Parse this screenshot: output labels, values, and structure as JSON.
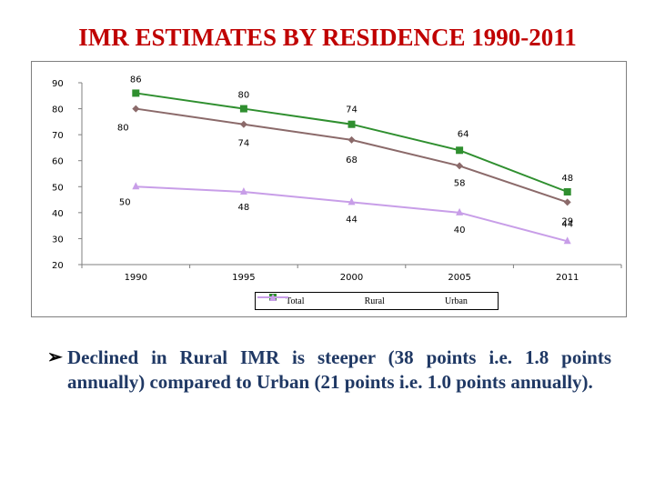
{
  "slide": {
    "title": "IMR ESTIMATES BY RESIDENCE 1990-2011",
    "bullet_text": "Declined in Rural IMR is steeper (38 points i.e. 1.8 points annually) compared to Urban (21 points i.e. 1.0 points annually).",
    "bullet_icon": "arrow-bullet-icon"
  },
  "chart_data": {
    "type": "line",
    "title": "",
    "xlabel": "",
    "ylabel": "",
    "categories": [
      "1990",
      "1995",
      "2000",
      "2005",
      "2011"
    ],
    "yticks": [
      20,
      30,
      40,
      50,
      60,
      70,
      80,
      90
    ],
    "ylim": [
      20,
      90
    ],
    "grid": false,
    "legend_position": "bottom",
    "series": [
      {
        "name": "Total",
        "values": [
          80,
          74,
          68,
          58,
          44
        ],
        "color": "#8b6a6a",
        "marker": "diamond",
        "labels": [
          "80",
          "74",
          "68",
          "58",
          "44"
        ]
      },
      {
        "name": "Rural",
        "values": [
          86,
          80,
          74,
          64,
          48
        ],
        "color": "#2f8f2f",
        "marker": "square",
        "labels": [
          "86",
          "80",
          "74",
          "64",
          "48"
        ]
      },
      {
        "name": "Urban",
        "values": [
          50,
          48,
          44,
          40,
          29
        ],
        "color": "#c89ee8",
        "marker": "triangle",
        "labels": [
          "50",
          "48",
          "44",
          "40",
          "29"
        ]
      }
    ]
  }
}
